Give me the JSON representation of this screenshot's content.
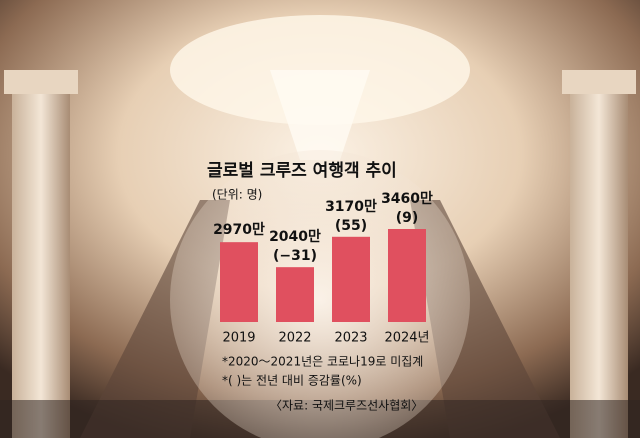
{
  "chart_data": {
    "type": "bar",
    "title": "글로벌 크루즈 여행객 추이",
    "subtitle": "(단위: 명)",
    "categories": [
      "2019",
      "2022",
      "2023",
      "2024년"
    ],
    "values": [
      2970,
      2040,
      3170,
      3460
    ],
    "value_labels": [
      "2970만",
      "2040만",
      "3170만",
      "3460만"
    ],
    "change_labels": [
      null,
      "(−31)",
      "(55)",
      "(9)"
    ],
    "color": "#e0505f",
    "notes": [
      "*2020～2021년은 코로나19로 미집계",
      "*( )는 전년 대비 증감률(%)"
    ],
    "source": "〈자료: 국제크루즈선사협회〉"
  }
}
